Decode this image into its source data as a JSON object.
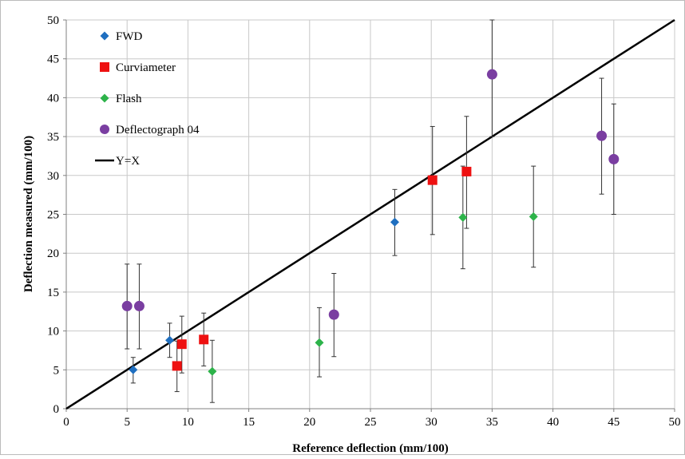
{
  "chart_data": {
    "type": "scatter",
    "title": "",
    "xlabel": "Reference deflection (mm/100)",
    "ylabel": "Deflection measured (mm/100)",
    "xlim": [
      0,
      50
    ],
    "ylim": [
      0,
      50
    ],
    "x_ticks": [
      0,
      5,
      10,
      15,
      20,
      25,
      30,
      35,
      40,
      45,
      50
    ],
    "y_ticks": [
      0,
      5,
      10,
      15,
      20,
      25,
      30,
      35,
      40,
      45,
      50
    ],
    "grid": true,
    "legend_position": "top-left",
    "series": [
      {
        "name": "FWD",
        "marker": "diamond",
        "color": "#1f6fc0",
        "points": [
          {
            "x": 5.5,
            "y": 5.0,
            "err_low": 3.3,
            "err_high": 6.6
          },
          {
            "x": 8.5,
            "y": 8.8,
            "err_low": 6.6,
            "err_high": 11.0
          },
          {
            "x": 27.0,
            "y": 24.0,
            "err_low": 19.7,
            "err_high": 28.2
          }
        ]
      },
      {
        "name": "Curviameter",
        "marker": "square",
        "color": "#ee1111",
        "points": [
          {
            "x": 9.1,
            "y": 5.5,
            "err_low": 2.2,
            "err_high": 8.7
          },
          {
            "x": 9.5,
            "y": 8.3,
            "err_low": 4.6,
            "err_high": 11.9
          },
          {
            "x": 11.3,
            "y": 8.9,
            "err_low": 5.5,
            "err_high": 12.3
          },
          {
            "x": 30.1,
            "y": 29.4,
            "err_low": 22.4,
            "err_high": 36.3
          },
          {
            "x": 32.9,
            "y": 30.5,
            "err_low": 23.2,
            "err_high": 37.6
          }
        ]
      },
      {
        "name": "Flash",
        "marker": "diamond",
        "color": "#2db34a",
        "points": [
          {
            "x": 12.0,
            "y": 4.8,
            "err_low": 0.8,
            "err_high": 8.8
          },
          {
            "x": 20.8,
            "y": 8.5,
            "err_low": 4.1,
            "err_high": 13.0
          },
          {
            "x": 32.6,
            "y": 24.6,
            "err_low": 18.0,
            "err_high": 31.2
          },
          {
            "x": 38.4,
            "y": 24.7,
            "err_low": 18.2,
            "err_high": 31.2
          }
        ]
      },
      {
        "name": "Deflectograph 04",
        "marker": "circle",
        "color": "#7a3ea1",
        "points": [
          {
            "x": 5.0,
            "y": 13.2,
            "err_low": 7.7,
            "err_high": 18.6
          },
          {
            "x": 6.0,
            "y": 13.2,
            "err_low": 7.7,
            "err_high": 18.6
          },
          {
            "x": 22.0,
            "y": 12.1,
            "err_low": 6.7,
            "err_high": 17.4
          },
          {
            "x": 35.0,
            "y": 43.0,
            "err_low": 35.0,
            "err_high": 50.0
          },
          {
            "x": 44.0,
            "y": 35.1,
            "err_low": 27.6,
            "err_high": 42.5
          },
          {
            "x": 45.0,
            "y": 32.1,
            "err_low": 25.0,
            "err_high": 39.2
          }
        ]
      },
      {
        "name": "Y=X",
        "type": "line",
        "color": "#000000",
        "x": [
          0,
          50
        ],
        "y": [
          0,
          50
        ]
      }
    ]
  }
}
